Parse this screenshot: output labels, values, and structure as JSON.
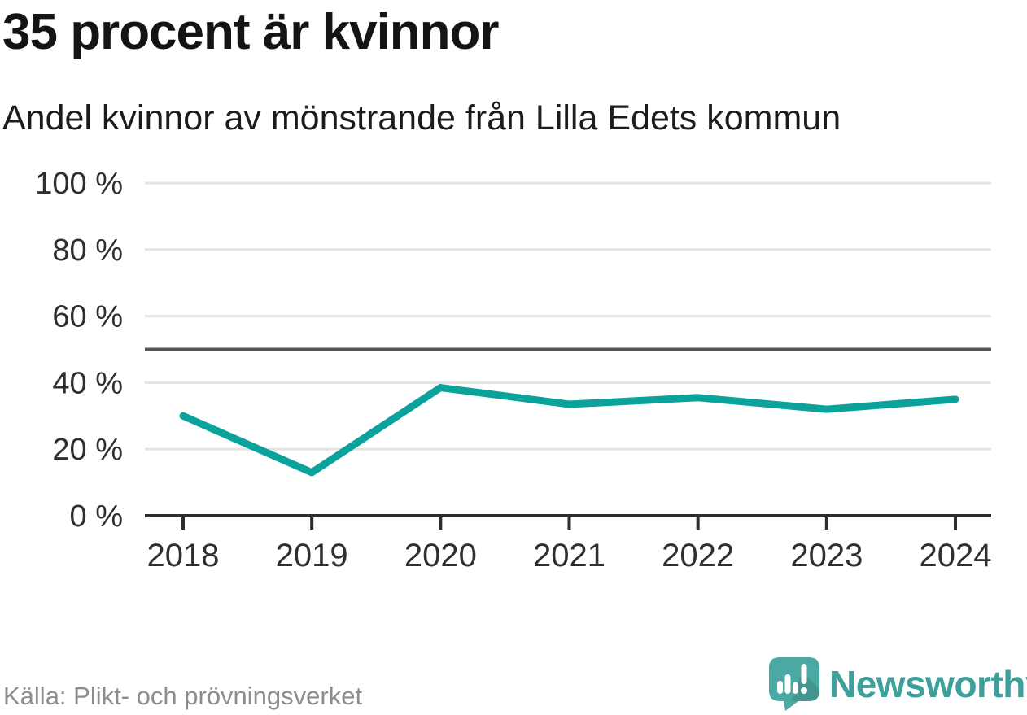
{
  "header": {
    "title": "35 procent är kvinnor",
    "subtitle": "Andel kvinnor av mönstrande från Lilla Edets kommun"
  },
  "chart_data": {
    "type": "line",
    "title": "35 procent är kvinnor",
    "subtitle": "Andel kvinnor av mönstrande från Lilla Edets kommun",
    "categories": [
      "2018",
      "2019",
      "2020",
      "2021",
      "2022",
      "2023",
      "2024"
    ],
    "series": [
      {
        "name": "Andel kvinnor av mönstrande",
        "values": [
          30,
          13,
          38.5,
          33.5,
          35.5,
          32,
          35
        ]
      }
    ],
    "ylim": [
      0,
      100
    ],
    "yticks": [
      {
        "value": 0,
        "label": "0 %"
      },
      {
        "value": 20,
        "label": "20 %"
      },
      {
        "value": 40,
        "label": "40 %"
      },
      {
        "value": 60,
        "label": "60 %"
      },
      {
        "value": 80,
        "label": "80 %"
      },
      {
        "value": 100,
        "label": "100 %"
      }
    ],
    "ygrid": [
      20,
      40,
      60,
      80,
      100
    ],
    "reference_line": {
      "value": 50
    },
    "grid": true,
    "legend": false,
    "xlabel": "",
    "ylabel": ""
  },
  "colors": {
    "line": "#0aa29a",
    "grid": "#e3e3e3",
    "axis": "#2d2d2d",
    "reference": "#54555b",
    "title_text": "#141414",
    "muted_text": "#8b8e90",
    "brand_teal": "#3da09b",
    "brand_bubble": "#4ba9a3",
    "brand_bubble_shade": "#41968f"
  },
  "footer": {
    "source": "Källa: Plikt- och prövningsverket",
    "brand": "Newsworthy",
    "logo_icon": "newsworthy-speech-bubble-bar-chart-icon"
  }
}
